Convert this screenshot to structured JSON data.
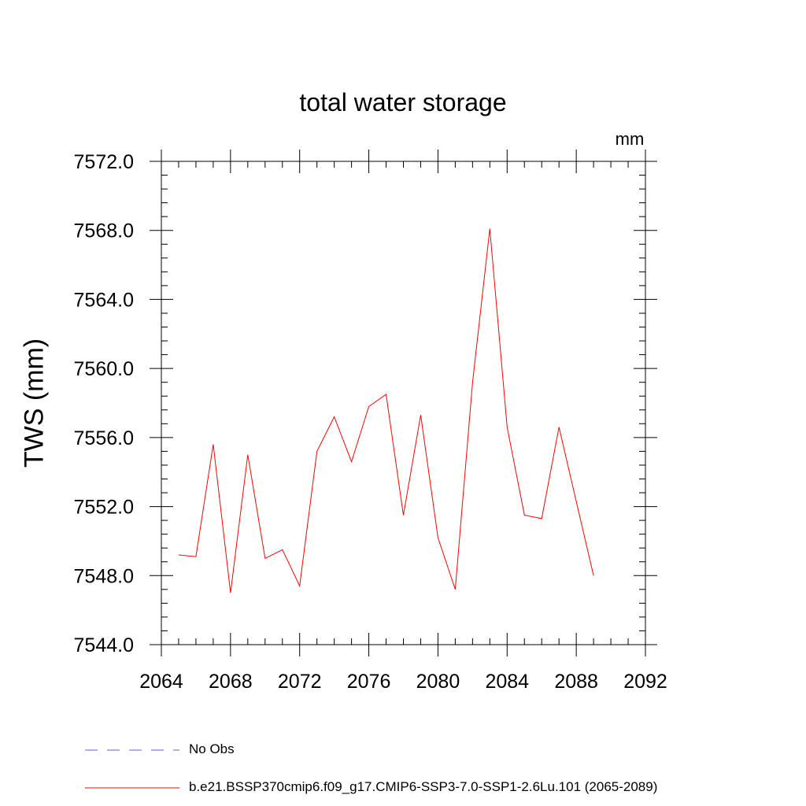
{
  "chart_data": {
    "type": "line",
    "title": "total water storage",
    "units_label": "mm",
    "ylabel": "TWS  (mm)",
    "xlabel": "",
    "xlim": [
      2064,
      2092
    ],
    "ylim": [
      7544.0,
      7572.0
    ],
    "x_ticks": [
      2064,
      2068,
      2072,
      2076,
      2080,
      2084,
      2088,
      2092
    ],
    "x_tick_labels": [
      "2064",
      "2068",
      "2072",
      "2076",
      "2080",
      "2084",
      "2088",
      "2092"
    ],
    "y_ticks": [
      7544.0,
      7548.0,
      7552.0,
      7556.0,
      7560.0,
      7564.0,
      7568.0,
      7572.0
    ],
    "y_tick_labels": [
      "7544.0",
      "7548.0",
      "7552.0",
      "7556.0",
      "7560.0",
      "7564.0",
      "7568.0",
      "7572.0"
    ],
    "series": [
      {
        "name": "b.e21.BSSP370cmip6.f09_g17.CMIP6-SSP3-7.0-SSP1-2.6Lu.101 (2065-2089)",
        "color": "#ff0000",
        "x": [
          2065,
          2066,
          2067,
          2068,
          2069,
          2070,
          2071,
          2072,
          2073,
          2074,
          2075,
          2076,
          2077,
          2078,
          2079,
          2080,
          2081,
          2082,
          2083,
          2084,
          2085,
          2086,
          2087,
          2088,
          2089
        ],
        "values": [
          7549.2,
          7549.1,
          7555.6,
          7547.0,
          7555.0,
          7549.0,
          7549.5,
          7547.4,
          7555.2,
          7557.2,
          7554.6,
          7557.8,
          7558.5,
          7551.5,
          7557.3,
          7550.2,
          7547.2,
          7559.2,
          7568.1,
          7556.6,
          7551.5,
          7551.3,
          7556.6,
          7552.3,
          7548.0
        ]
      }
    ],
    "legend": [
      {
        "label": "No Obs",
        "style": "dashed",
        "color": "#6a5acd"
      },
      {
        "label": "b.e21.BSSP370cmip6.f09_g17.CMIP6-SSP3-7.0-SSP1-2.6Lu.101 (2065-2089)",
        "style": "solid",
        "color": "#ff0000"
      }
    ],
    "legend_position": "bottom"
  }
}
